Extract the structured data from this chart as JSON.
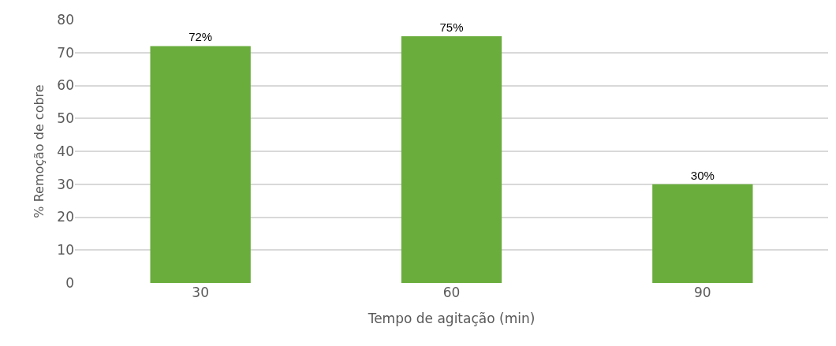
{
  "chart_data": {
    "type": "bar",
    "categories": [
      "30",
      "60",
      "90"
    ],
    "values": [
      72,
      75,
      30
    ],
    "value_labels": [
      "72%",
      "75%",
      "30%"
    ],
    "color": "#6aad3d",
    "xlabel": "Tempo de agitação (min)",
    "ylabel": "% Remoção de cobre",
    "ylim": [
      0,
      80
    ],
    "yticks": [
      0,
      10,
      20,
      30,
      40,
      50,
      60,
      70,
      80
    ],
    "grid": "y"
  }
}
